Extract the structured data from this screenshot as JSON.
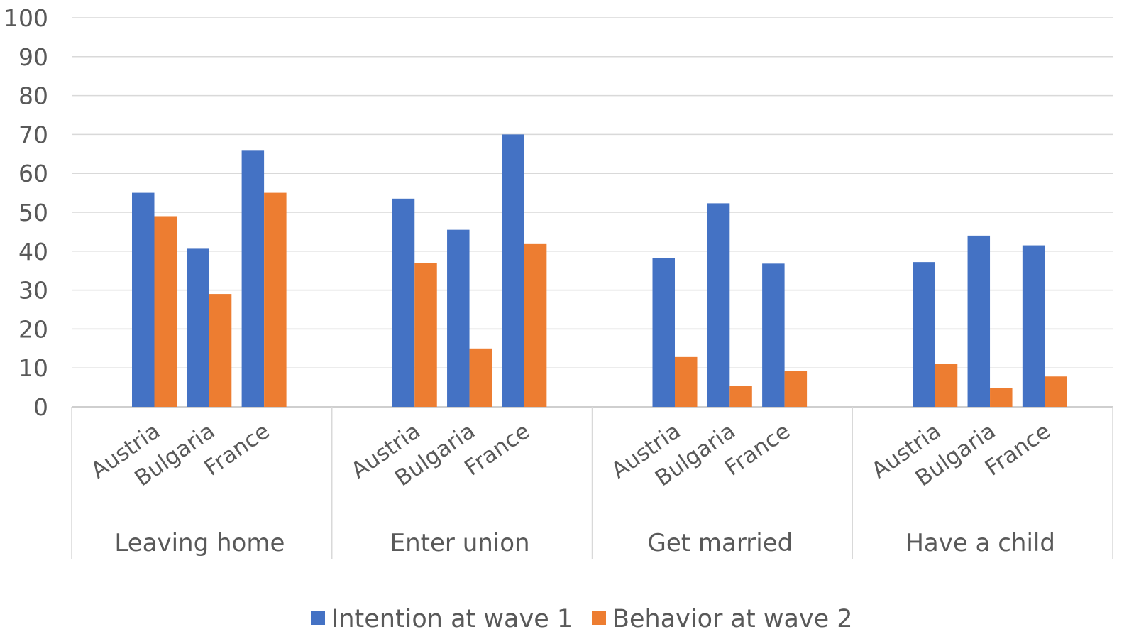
{
  "chart_data": {
    "type": "bar",
    "groups": [
      {
        "label": "Leaving home",
        "categories": [
          "Austria",
          "Bulgaria",
          "France"
        ]
      },
      {
        "label": "Enter union",
        "categories": [
          "Austria",
          "Bulgaria",
          "France"
        ]
      },
      {
        "label": "Get married",
        "categories": [
          "Austria",
          "Bulgaria",
          "France"
        ]
      },
      {
        "label": "Have a child",
        "categories": [
          "Austria",
          "Bulgaria",
          "France"
        ]
      }
    ],
    "series": [
      {
        "name": "Intention at wave 1",
        "color": "#4472C4",
        "values": [
          55,
          40.8,
          66,
          53.5,
          45.5,
          70,
          38.3,
          52.3,
          36.8,
          37.2,
          44,
          41.5
        ]
      },
      {
        "name": "Behavior at wave 2",
        "color": "#ED7D31",
        "values": [
          49,
          29,
          55,
          37,
          15,
          42,
          12.8,
          5.3,
          9.2,
          11,
          4.8,
          7.8
        ]
      }
    ],
    "ylim": [
      0,
      100
    ],
    "yticks": [
      "0",
      "10",
      "20",
      "30",
      "40",
      "50",
      "60",
      "70",
      "80",
      "90",
      "100"
    ],
    "grid": true,
    "legend_position": "bottom"
  }
}
